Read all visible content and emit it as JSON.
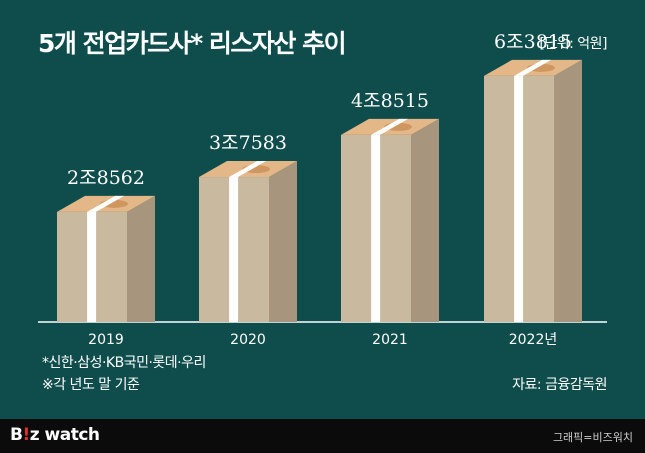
{
  "title": "5개 전업카드사* 리스자산 추이",
  "unit": "[단위: 억원]",
  "notes": [
    "*신한·삼성·KB국민·롯데·우리",
    "※각 년도 말 기준"
  ],
  "source": "자료: 금융감독원",
  "brand": {
    "logo_prefix": "B",
    "logo_dot": "!",
    "logo_suffix": "z watch",
    "credit": "그래픽=비즈워치"
  },
  "colors": {
    "background": "#0f4d4d",
    "footer": "#0b0b0b",
    "bill_front": "#c8b99f",
    "bill_side": "#a7967d",
    "bill_top": "#e3b787",
    "band": "#ffffff",
    "brand_dot": "#e12f2f"
  },
  "chart_data": {
    "type": "bar",
    "title": "5개 전업카드사* 리스자산 추이",
    "xlabel": "",
    "ylabel": "억원",
    "categories": [
      "2019",
      "2020",
      "2021",
      "2022년"
    ],
    "values": [
      28562,
      37583,
      48515,
      63815
    ],
    "value_labels": [
      "2조8562",
      "3조7583",
      "4조8515",
      "6조3815"
    ],
    "ylim": [
      0,
      70000
    ],
    "grid": false,
    "legend": "none"
  }
}
